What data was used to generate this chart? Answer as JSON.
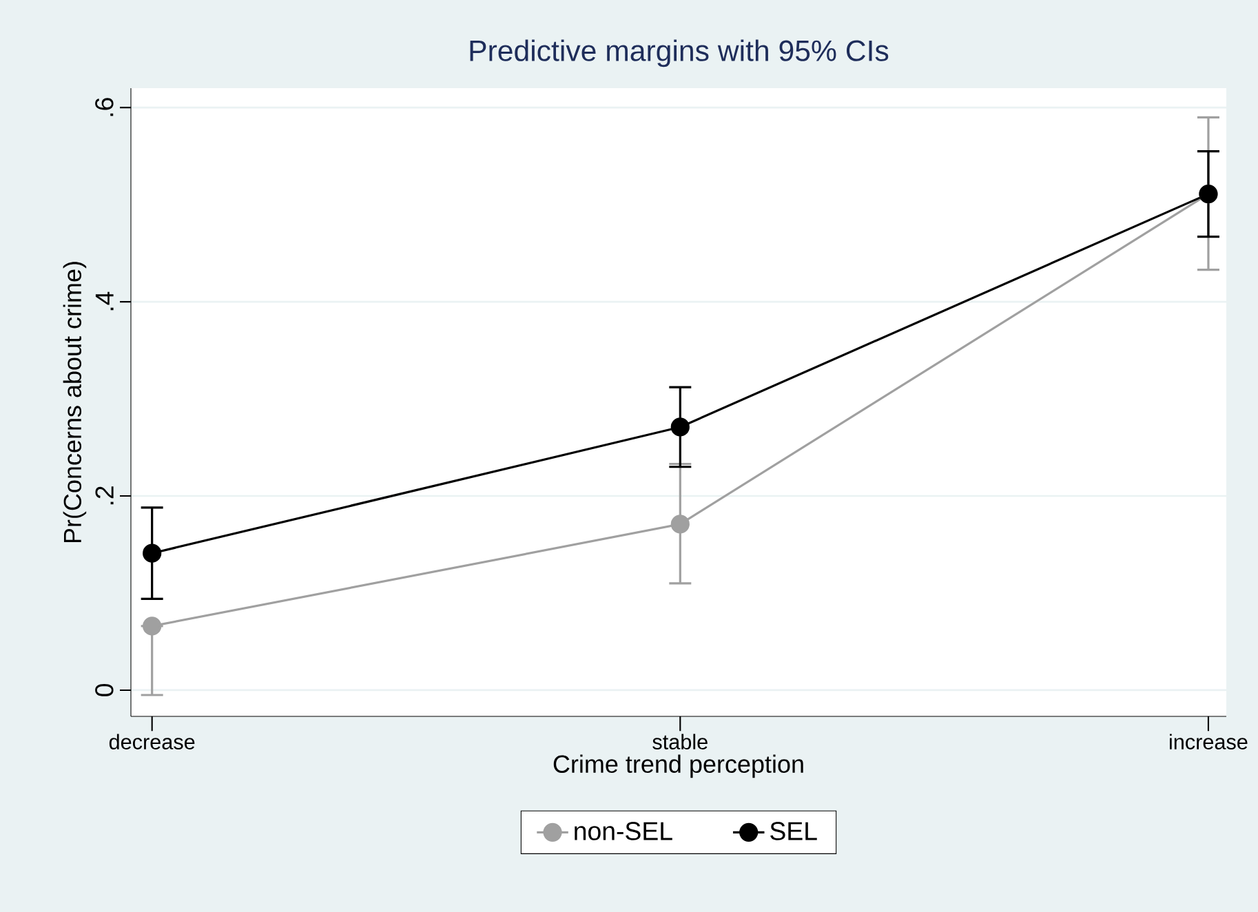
{
  "chart_data": {
    "type": "line",
    "title": "Predictive margins with 95% CIs",
    "xlabel": "Crime trend perception",
    "ylabel": "Pr(Concerns about crime)",
    "categories": [
      "decrease",
      "stable",
      "increase"
    ],
    "series": [
      {
        "name": "non-SEL",
        "color": "#a0a0a0",
        "values": [
          0.066,
          0.171,
          0.511
        ],
        "errors": [
          [
            -0.005,
            0.066
          ],
          [
            0.11,
            0.233
          ],
          [
            0.433,
            0.59
          ]
        ]
      },
      {
        "name": "SEL",
        "color": "#000000",
        "values": [
          0.141,
          0.271,
          0.511
        ],
        "errors": [
          [
            0.094,
            0.188
          ],
          [
            0.23,
            0.312
          ],
          [
            0.467,
            0.555
          ]
        ]
      }
    ],
    "ylim": [
      -0.027,
      0.62
    ],
    "yticks": [
      {
        "value": 0,
        "label": "0"
      },
      {
        "value": 0.2,
        "label": ".2"
      },
      {
        "value": 0.4,
        "label": ".4"
      },
      {
        "value": 0.6,
        "label": ".6"
      }
    ],
    "grid": "y",
    "legend": "bottom",
    "marker": "circle",
    "line_style": "solid"
  }
}
